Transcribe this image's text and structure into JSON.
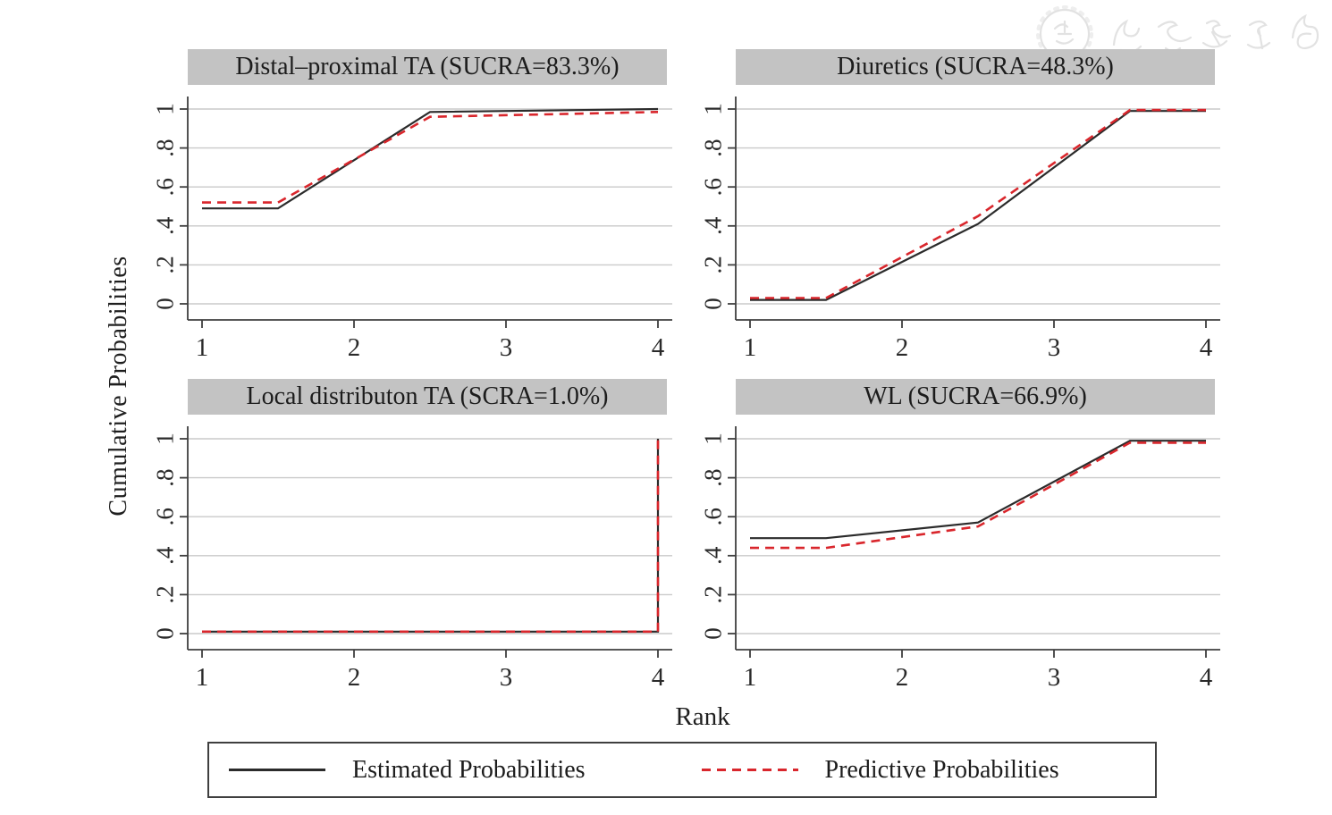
{
  "figure": {
    "type": "cumulative-ranking-probability-plot",
    "x_label": "Rank",
    "y_label": "Cumulative Probabilities"
  },
  "axes": {
    "x_ticks": [
      "1",
      "2",
      "3",
      "4"
    ],
    "y_ticks": [
      "0",
      ".2",
      ".4",
      ".6",
      ".8",
      "1"
    ]
  },
  "legend": {
    "items": [
      {
        "label": "Estimated Probabilities",
        "line": "solid",
        "color": "#2b2b2b"
      },
      {
        "label": "Predictive Probabilities",
        "line": "dashed",
        "color": "#d9262c"
      }
    ]
  },
  "watermark": {
    "text": "中华医学会",
    "color": "#d7d7d7"
  },
  "colors": {
    "background": "#ffffff",
    "panel_title_bg": "#c3c3c3",
    "grid": "#cacaca",
    "axis": "#3f3f3f",
    "estimated_line": "#2b2b2b",
    "predictive_line": "#d9262c",
    "legend_border": "#3f3f3f"
  },
  "chart_data": {
    "type": "line",
    "layout": "2x2-panels",
    "xlabel": "Rank",
    "ylabel": "Cumulative Probabilities",
    "xlim": [
      1,
      4
    ],
    "ylim": [
      0,
      1
    ],
    "x_ticks": [
      1,
      2,
      3,
      4
    ],
    "y_ticks": [
      0,
      0.2,
      0.4,
      0.6,
      0.8,
      1
    ],
    "grid": "horizontal-only",
    "legend_position": "bottom",
    "panels": [
      {
        "title": "Distal–proximal TA (SUCRA=83.3%)",
        "series": [
          {
            "name": "Estimated Probabilities",
            "style": "solid",
            "color": "#2b2b2b",
            "points": [
              [
                1,
                0.49
              ],
              [
                1.5,
                0.49
              ],
              [
                2.5,
                0.985
              ],
              [
                4,
                1.0
              ]
            ]
          },
          {
            "name": "Predictive Probabilities",
            "style": "dashed",
            "color": "#d9262c",
            "points": [
              [
                1,
                0.52
              ],
              [
                1.5,
                0.52
              ],
              [
                2.5,
                0.96
              ],
              [
                4,
                0.985
              ]
            ]
          }
        ]
      },
      {
        "title": "Diuretics (SUCRA=48.3%)",
        "series": [
          {
            "name": "Estimated Probabilities",
            "style": "solid",
            "color": "#2b2b2b",
            "points": [
              [
                1,
                0.02
              ],
              [
                1.5,
                0.02
              ],
              [
                2.5,
                0.41
              ],
              [
                3.5,
                0.99
              ],
              [
                4,
                0.99
              ]
            ]
          },
          {
            "name": "Predictive Probabilities",
            "style": "dashed",
            "color": "#d9262c",
            "points": [
              [
                1,
                0.03
              ],
              [
                1.5,
                0.03
              ],
              [
                2.5,
                0.45
              ],
              [
                3.5,
                0.995
              ],
              [
                4,
                0.995
              ]
            ]
          }
        ]
      },
      {
        "title": "Local distributon TA (SCRA=1.0%)",
        "series": [
          {
            "name": "Estimated Probabilities",
            "style": "solid",
            "color": "#2b2b2b",
            "points": [
              [
                1,
                0.01
              ],
              [
                4,
                0.01
              ],
              [
                4,
                1.0
              ]
            ]
          },
          {
            "name": "Predictive Probabilities",
            "style": "dashed",
            "color": "#d9262c",
            "points": [
              [
                1,
                0.01
              ],
              [
                4,
                0.01
              ],
              [
                4,
                1.0
              ]
            ]
          }
        ]
      },
      {
        "title": "WL (SUCRA=66.9%)",
        "series": [
          {
            "name": "Estimated Probabilities",
            "style": "solid",
            "color": "#2b2b2b",
            "points": [
              [
                1,
                0.49
              ],
              [
                1.5,
                0.49
              ],
              [
                2.5,
                0.57
              ],
              [
                3.5,
                0.99
              ],
              [
                4,
                0.99
              ]
            ]
          },
          {
            "name": "Predictive Probabilities",
            "style": "dashed",
            "color": "#d9262c",
            "points": [
              [
                1,
                0.44
              ],
              [
                1.5,
                0.44
              ],
              [
                2.5,
                0.55
              ],
              [
                3.5,
                0.98
              ],
              [
                4,
                0.98
              ]
            ]
          }
        ]
      }
    ]
  }
}
